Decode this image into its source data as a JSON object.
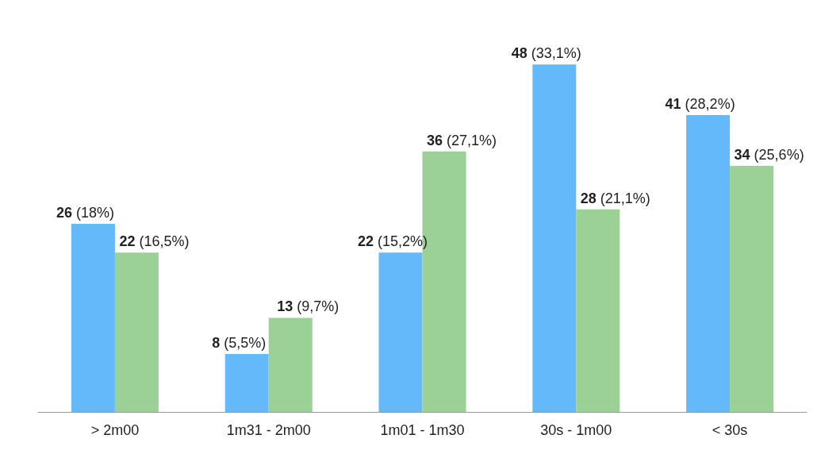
{
  "chart_data": {
    "type": "bar",
    "categories": [
      "> 2m00",
      "1m31 - 2m00",
      "1m01 - 1m30",
      "30s - 1m00",
      "< 30s"
    ],
    "series": [
      {
        "color": "#63b9f9",
        "values": [
          26,
          8,
          22,
          48,
          41
        ],
        "value_labels": [
          "26 (18%)",
          "8 (5,5%)",
          "22 (15,2%)",
          "48 (33,1%)",
          "41 (28,2%)"
        ]
      },
      {
        "color": "#9bd196",
        "values": [
          22,
          13,
          36,
          28,
          34
        ],
        "value_labels": [
          "22 (16,5%)",
          "13 (9,7%)",
          "36 (27,1%)",
          "28 (21,1%)",
          "34 (25,6%)"
        ]
      }
    ]
  }
}
